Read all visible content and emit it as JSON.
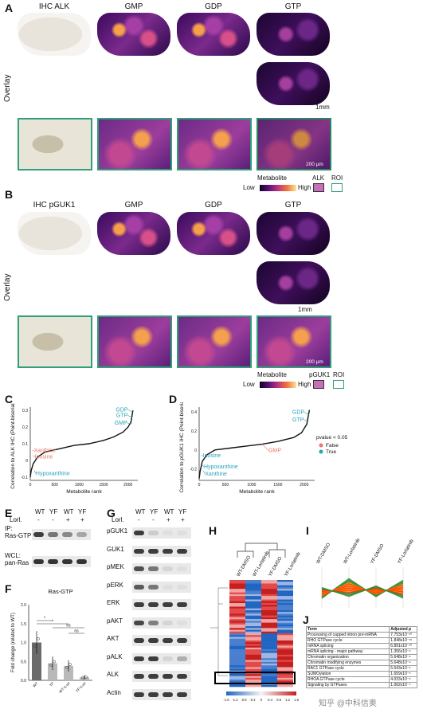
{
  "panelA": {
    "label": "A",
    "columns": [
      "IHC ALK",
      "GMP",
      "GDP",
      "GTP"
    ],
    "row_label": "Overlay",
    "scale_top": "1mm",
    "scale_zoom": "200 µm",
    "legend": {
      "title": "Metabolite",
      "low": "Low",
      "high": "High",
      "marker": "ALK",
      "roi": "ROI"
    }
  },
  "panelB": {
    "label": "B",
    "columns": [
      "IHC pGUK1",
      "GMP",
      "GDP",
      "GTP"
    ],
    "row_label": "Overlay",
    "scale_top": "1mm",
    "scale_zoom": "200 µm",
    "legend": {
      "title": "Metabolite",
      "low": "Low",
      "high": "High",
      "marker": "pGUK1",
      "roi": "ROI"
    }
  },
  "panelC": {
    "label": "C",
    "chart_data": {
      "type": "line",
      "xlabel": "Metabolite rank",
      "ylabel": "Correlation to ALK IHC (Point-biserial r)",
      "x_ticks": [
        0,
        500,
        1000,
        1500,
        2000
      ],
      "y_ticks": [
        -0.1,
        0.0,
        0.1,
        0.2,
        0.3
      ],
      "ylim": [
        -0.12,
        0.32
      ],
      "xlim": [
        0,
        2200
      ],
      "curve_x": [
        0,
        20,
        60,
        150,
        300,
        600,
        900,
        1200,
        1500,
        1700,
        1900,
        2000,
        2060,
        2100
      ],
      "curve_y": [
        -0.1,
        -0.06,
        -0.02,
        0.02,
        0.05,
        0.07,
        0.09,
        0.1,
        0.12,
        0.14,
        0.17,
        0.2,
        0.23,
        0.3
      ],
      "annotations": [
        {
          "label": "GDP",
          "x": 2095,
          "y": 0.29,
          "color": "#29a3b8"
        },
        {
          "label": "GTP",
          "x": 2090,
          "y": 0.26,
          "color": "#29a3b8"
        },
        {
          "label": "GMP",
          "x": 2080,
          "y": 0.22,
          "color": "#29a3b8"
        },
        {
          "label": "Xanthine",
          "x": 40,
          "y": 0.06,
          "color": "#e8776a"
        },
        {
          "label": "Inosine",
          "x": 60,
          "y": 0.03,
          "color": "#e8776a"
        },
        {
          "label": "Hypoxanthine",
          "x": 80,
          "y": -0.06,
          "color": "#29a3b8"
        }
      ]
    }
  },
  "panelD": {
    "label": "D",
    "chart_data": {
      "type": "line",
      "xlabel": "Metabolite rank",
      "ylabel": "Correlation to pGUK1 IHC (Point-biserial r)",
      "x_ticks": [
        0,
        500,
        1000,
        1500,
        2000
      ],
      "y_ticks": [
        -0.2,
        0.0,
        0.2,
        0.4
      ],
      "ylim": [
        -0.32,
        0.45
      ],
      "xlim": [
        0,
        2200
      ],
      "curve_x": [
        0,
        20,
        60,
        150,
        300,
        600,
        900,
        1200,
        1500,
        1800,
        1950,
        2050,
        2100
      ],
      "curve_y": [
        -0.3,
        -0.22,
        -0.12,
        -0.05,
        0.0,
        0.02,
        0.04,
        0.06,
        0.09,
        0.13,
        0.18,
        0.27,
        0.42
      ],
      "annotations": [
        {
          "label": "GDP",
          "x": 2095,
          "y": 0.37,
          "color": "#29a3b8"
        },
        {
          "label": "GTP",
          "x": 2085,
          "y": 0.3,
          "color": "#29a3b8"
        },
        {
          "label": "GMP",
          "x": 1200,
          "y": 0.06,
          "color": "#e8776a"
        },
        {
          "label": "Inosine",
          "x": 40,
          "y": -0.06,
          "color": "#29a3b8"
        },
        {
          "label": "Hypoxanthine",
          "x": 60,
          "y": -0.16,
          "color": "#29a3b8"
        },
        {
          "label": "Xanthine",
          "x": 80,
          "y": -0.22,
          "color": "#29a3b8"
        }
      ],
      "legend": {
        "title": "pvalue < 0.05",
        "items": [
          {
            "label": "False",
            "color": "#e8776a"
          },
          {
            "label": "True",
            "color": "#29a3b8"
          }
        ]
      }
    }
  },
  "panelE": {
    "label": "E",
    "lanes": [
      "WT",
      "YF",
      "WT",
      "YF"
    ],
    "lorl_label": "Lorl.",
    "lorl_values": [
      "-",
      "-",
      "+",
      "+"
    ],
    "blots": [
      {
        "label1": "IP:",
        "label2": "Ras-GTP",
        "intensities": [
          0.9,
          0.6,
          0.5,
          0.35
        ]
      },
      {
        "label1": "WCL:",
        "label2": "pan-Ras",
        "intensities": [
          0.95,
          0.95,
          0.95,
          0.95
        ]
      }
    ]
  },
  "panelF": {
    "label": "F",
    "chart_data": {
      "type": "bar",
      "title": "Ras-GTP",
      "ylabel": "Fold change (related to WT)",
      "categories": [
        "WT",
        "YF",
        "WT+Lorl",
        "YF+Lorl"
      ],
      "values": [
        1.0,
        0.45,
        0.38,
        0.08
      ],
      "errors": [
        0.3,
        0.18,
        0.15,
        0.06
      ],
      "ylim": [
        0,
        2.0
      ],
      "y_ticks": [
        0.0,
        0.5,
        1.0,
        1.5,
        2.0
      ],
      "colors": [
        "#6b6b6b",
        "#b9b9b9",
        "#b9b9b9",
        "#b9b9b9"
      ],
      "significance": [
        "*",
        "*",
        "ns",
        "ns"
      ]
    }
  },
  "panelG": {
    "label": "G",
    "lanes": [
      "WT",
      "YF",
      "WT",
      "YF"
    ],
    "lorl_label": "Lorl.",
    "lorl_values": [
      "-",
      "-",
      "+",
      "+"
    ],
    "blots": [
      {
        "name": "pGUK1",
        "intensities": [
          0.9,
          0.15,
          0.05,
          0.05
        ]
      },
      {
        "name": "GUK1",
        "intensities": [
          0.9,
          0.9,
          0.9,
          0.9
        ]
      },
      {
        "name": "pMEK",
        "intensities": [
          0.8,
          0.6,
          0.1,
          0.05
        ]
      },
      {
        "name": "pERK",
        "intensities": [
          0.75,
          0.6,
          0.05,
          0.05
        ]
      },
      {
        "name": "ERK",
        "intensities": [
          0.9,
          0.9,
          0.9,
          0.9
        ]
      },
      {
        "name": "pAKT",
        "intensities": [
          0.85,
          0.55,
          0.1,
          0.05
        ]
      },
      {
        "name": "AKT",
        "intensities": [
          0.9,
          0.9,
          0.9,
          0.9
        ]
      },
      {
        "name": "pALK",
        "intensities": [
          0.9,
          0.9,
          0.1,
          0.3
        ]
      },
      {
        "name": "ALK",
        "intensities": [
          0.9,
          0.9,
          0.9,
          0.9
        ]
      },
      {
        "name": "Actin",
        "intensities": [
          0.9,
          0.9,
          0.9,
          0.9
        ]
      }
    ]
  },
  "panelH": {
    "label": "H",
    "columns": [
      "WT-DMSO",
      "WT-Lorlatinib",
      "YF-DMSO",
      "YF-Lorlatinib"
    ],
    "scale_ticks": [
      "-1.6",
      "-1.2",
      "-0.8",
      "-0.4",
      "0",
      "0.4",
      "0.8",
      "1.2",
      "1.6"
    ]
  },
  "panelI": {
    "label": "I",
    "columns": [
      "WT-DMSO",
      "WT-Lorlatinib",
      "YF-DMSO",
      "YF-Lorlatinib"
    ]
  },
  "panelJ": {
    "label": "J",
    "header": [
      "Term",
      "Adjusted p"
    ],
    "rows": [
      [
        "Processing of capped intron pre-mRNA",
        "7.753x10⁻¹⁰"
      ],
      [
        "RHO GTPase cycle",
        "1.848x10⁻¹⁵"
      ],
      [
        "mRNA splicing",
        "6.891x10⁻¹⁰"
      ],
      [
        "mRNA splicing - major pathway",
        "1.356x10⁻⁹"
      ],
      [
        "Chromatin organization",
        "5.648x10⁻⁹"
      ],
      [
        "Chromatin modifying enzymes",
        "5.648x10⁻⁹"
      ],
      [
        "RAC1 GTPase cycle",
        "5.543x10⁻⁶"
      ],
      [
        "SUMOylation",
        "1.659x10⁻⁵"
      ],
      [
        "RHOA GTPase cycle",
        "4.033x10⁻⁵"
      ],
      [
        "Signaling by GTPases",
        "1.062x10⁻⁴"
      ]
    ]
  },
  "watermark": "知乎 @中科信奥"
}
